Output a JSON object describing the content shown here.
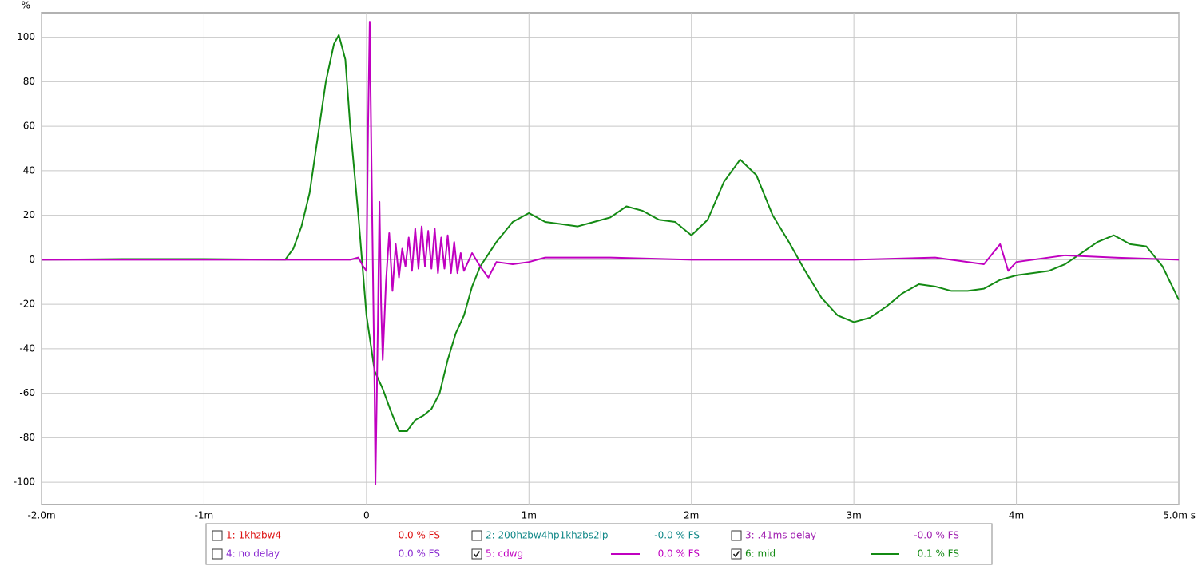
{
  "chart_data": {
    "type": "line",
    "y_unit": "%",
    "xlim": [
      -0.002,
      0.005
    ],
    "xticks": [
      {
        "value": -0.002,
        "label": "-2.0m"
      },
      {
        "value": -0.001,
        "label": "-1m"
      },
      0,
      {
        "value": 0.001,
        "label": "1m"
      },
      {
        "value": 0.002,
        "label": "2m"
      },
      {
        "value": 0.003,
        "label": "3m"
      },
      {
        "value": 0.004,
        "label": "4m"
      },
      {
        "value": 0.005,
        "label": "5.0m s"
      }
    ],
    "ylim": [
      -110,
      111
    ],
    "yticks": [
      -100,
      -80,
      -60,
      -40,
      -20,
      0,
      20,
      40,
      60,
      80,
      100
    ],
    "grid": true,
    "series": [
      {
        "name": "1: 1khzbw4",
        "color": "#dd1111",
        "checked": false,
        "readout": "0.0 % FS"
      },
      {
        "name": "2: 200hzbw4hp1khzbs2lp",
        "color": "#118888",
        "checked": false,
        "readout": "-0.0 % FS"
      },
      {
        "name": "3: .41ms delay",
        "color": "#a020b0",
        "checked": false,
        "readout": "-0.0 % FS"
      },
      {
        "name": "4: no delay",
        "color": "#8a2ad0",
        "checked": false,
        "readout": "0.0 % FS"
      },
      {
        "name": "5: cdwg",
        "color": "#c000c0",
        "checked": true,
        "readout": "0.0 % FS",
        "x": [
          -0.002,
          -0.0005,
          -0.0001,
          -5e-05,
          -2e-05,
          0,
          1e-05,
          2e-05,
          3.5e-05,
          5e-05,
          5.5e-05,
          7e-05,
          8e-05,
          9e-05,
          0.0001,
          0.00012,
          0.00014,
          0.00016,
          0.00018,
          0.0002,
          0.00022,
          0.00024,
          0.00026,
          0.00028,
          0.0003,
          0.00032,
          0.00034,
          0.00036,
          0.00038,
          0.0004,
          0.00042,
          0.00044,
          0.00046,
          0.00048,
          0.0005,
          0.00052,
          0.00054,
          0.00056,
          0.00058,
          0.0006,
          0.00065,
          0.0007,
          0.00075,
          0.0008,
          0.0009,
          0.001,
          0.0011,
          0.0015,
          0.002,
          0.003,
          0.0035,
          0.0038,
          0.0039,
          0.00395,
          0.004,
          0.0043,
          0.0046,
          0.005
        ],
        "values": [
          0,
          0,
          0,
          1,
          -3,
          -5,
          60,
          107,
          20,
          -60,
          -101,
          -30,
          26,
          -20,
          -45,
          -10,
          12,
          -14,
          7,
          -8,
          5,
          -3,
          10,
          -5,
          14,
          -4,
          15,
          -3,
          13,
          -4,
          14,
          -6,
          10,
          -4,
          11,
          -6,
          8,
          -6,
          3,
          -5,
          3,
          -3,
          -8,
          -1,
          -2,
          -1,
          1,
          1,
          0,
          0,
          1,
          -2,
          7,
          -5,
          -1,
          2,
          1,
          0
        ]
      },
      {
        "name": "6: mid",
        "color": "#138a13",
        "checked": true,
        "readout": "0.1 % FS",
        "x": [
          -0.002,
          -0.0015,
          -0.001,
          -0.0005,
          -0.00045,
          -0.0004,
          -0.00035,
          -0.0003,
          -0.00025,
          -0.0002,
          -0.00017,
          -0.00013,
          -0.0001,
          -5e-05,
          0,
          5e-05,
          0.0001,
          0.00015,
          0.0002,
          0.00025,
          0.0003,
          0.00035,
          0.0004,
          0.00045,
          0.0005,
          0.00055,
          0.0006,
          0.00065,
          0.0007,
          0.0008,
          0.0009,
          0.001,
          0.0011,
          0.0012,
          0.0013,
          0.0014,
          0.0015,
          0.0016,
          0.0017,
          0.0018,
          0.0019,
          0.002,
          0.0021,
          0.0022,
          0.0023,
          0.0024,
          0.0025,
          0.0026,
          0.0027,
          0.0028,
          0.0029,
          0.003,
          0.0031,
          0.0032,
          0.0033,
          0.0034,
          0.0035,
          0.0036,
          0.0037,
          0.0038,
          0.0039,
          0.004,
          0.0041,
          0.0042,
          0.0043,
          0.0044,
          0.0045,
          0.0046,
          0.0047,
          0.0048,
          0.0049,
          0.005
        ],
        "values": [
          0,
          0.3,
          0.3,
          0,
          5,
          15,
          30,
          55,
          80,
          97,
          101,
          90,
          60,
          20,
          -25,
          -50,
          -58,
          -68,
          -77,
          -77,
          -72,
          -70,
          -67,
          -60,
          -45,
          -33,
          -25,
          -12,
          -3,
          8,
          17,
          21,
          17,
          16,
          15,
          17,
          19,
          24,
          22,
          18,
          17,
          11,
          18,
          35,
          45,
          38,
          20,
          8,
          -5,
          -17,
          -25,
          -28,
          -26,
          -21,
          -15,
          -11,
          -12,
          -14,
          -14,
          -13,
          -9,
          -7,
          -6,
          -5,
          -2,
          3,
          8,
          11,
          7,
          6,
          -3,
          -18
        ]
      }
    ]
  }
}
